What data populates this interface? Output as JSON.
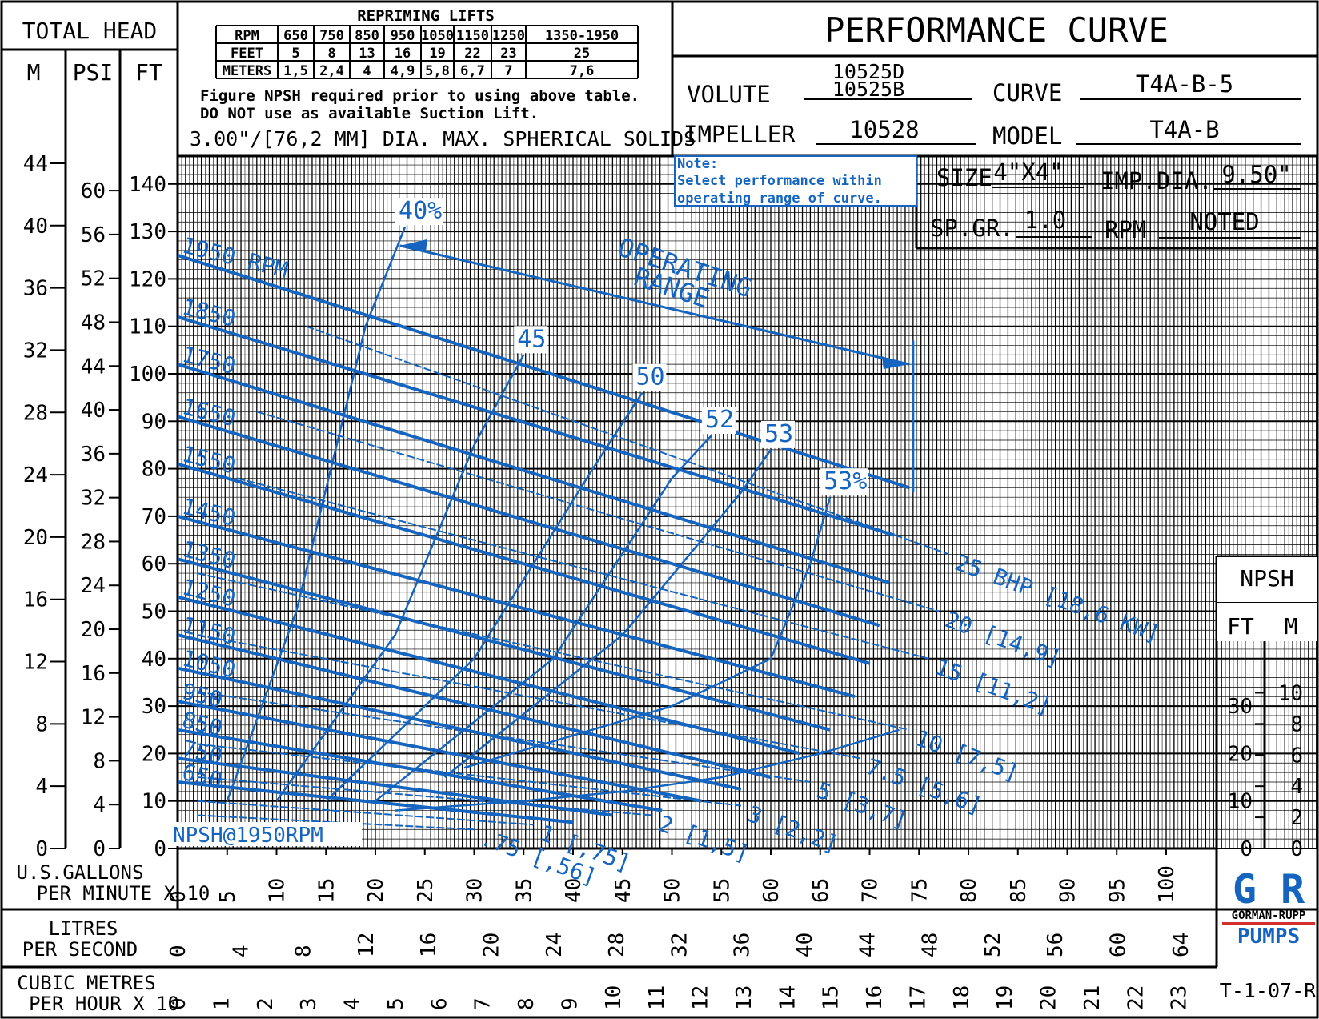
{
  "header": {
    "total_head": "TOTAL HEAD",
    "unit_m": "M",
    "unit_psi": "PSI",
    "unit_ft": "FT",
    "title": "PERFORMANCE CURVE"
  },
  "repriming": {
    "title": "REPRIMING LIFTS",
    "rows": [
      [
        "RPM",
        "650",
        "750",
        "850",
        "950",
        "1050",
        "1150",
        "1250",
        "1350-1950"
      ],
      [
        "FEET",
        "5",
        "8",
        "13",
        "16",
        "19",
        "22",
        "23",
        "25"
      ],
      [
        "METERS",
        "1,5",
        "2,4",
        "4",
        "4,9",
        "5,8",
        "6,7",
        "7",
        "7,6"
      ]
    ],
    "note1": "Figure NPSH required prior to using above table.",
    "note2": "DO NOT use as available Suction Lift.",
    "solids": "3.00\"/[76,2 MM] DIA. MAX. SPHERICAL SOLIDS"
  },
  "specs": {
    "volute_label": "VOLUTE",
    "volute_value_1": "10525D",
    "volute_value_2": "10525B",
    "curve_label": "CURVE",
    "curve_value": "T4A-B-5",
    "impeller_label": "IMPELLER",
    "impeller_value": "10528",
    "model_label": "MODEL",
    "model_value": "T4A-B",
    "size_label": "SIZE",
    "size_value": "4\"X4\"",
    "impdia_label": "IMP.DIA.",
    "impdia_value": "9.50\"",
    "spgr_label": "SP.GR.",
    "spgr_value": "1.0",
    "rpm_label": "RPM",
    "rpm_value": "NOTED"
  },
  "note": {
    "line1": "Note:",
    "line2": "Select performance within",
    "line3": "operating range of curve."
  },
  "npsh_box": {
    "title": "NPSH",
    "ft": "FT",
    "m": "M"
  },
  "axis": {
    "usgpm_1": "U.S.GALLONS",
    "usgpm_2": "PER MINUTE X 10",
    "lps_1": "LITRES",
    "lps_2": "PER SECOND",
    "cmh_1": "CUBIC METRES",
    "cmh_2": "PER HOUR X 10"
  },
  "logo": {
    "mark": "G R",
    "line1": "GORMAN-RUPP",
    "line2": "PUMPS"
  },
  "drawing_number": "T-1-07-R",
  "chart_data": {
    "type": "line",
    "x_unit": "U.S. gallons per minute x 10",
    "xlim": [
      0,
      105
    ],
    "ylim": [
      0,
      140
    ],
    "x_ticks": [
      "0",
      "5",
      "10",
      "15",
      "20",
      "25",
      "30",
      "35",
      "40",
      "45",
      "50",
      "55",
      "60",
      "65",
      "70",
      "75",
      "80",
      "85",
      "90",
      "95",
      "100"
    ],
    "lps_ticks": [
      "0",
      "4",
      "8",
      "12",
      "16",
      "20",
      "24",
      "28",
      "32",
      "36",
      "40",
      "44",
      "48",
      "52",
      "56",
      "60",
      "64"
    ],
    "cmh_ticks": [
      "0",
      "1",
      "2",
      "3",
      "4",
      "5",
      "6",
      "7",
      "8",
      "9",
      "10",
      "11",
      "12",
      "13",
      "14",
      "15",
      "16",
      "17",
      "18",
      "19",
      "20",
      "21",
      "22",
      "23"
    ],
    "ft_ticks": [
      "0",
      "10",
      "20",
      "30",
      "40",
      "50",
      "60",
      "70",
      "80",
      "90",
      "100",
      "110",
      "120",
      "130",
      "140"
    ],
    "psi_ticks": [
      "0",
      "4",
      "8",
      "12",
      "16",
      "20",
      "24",
      "28",
      "32",
      "36",
      "40",
      "44",
      "48",
      "52",
      "56",
      "60"
    ],
    "m_ticks": [
      "0",
      "4",
      "8",
      "12",
      "16",
      "20",
      "24",
      "28",
      "32",
      "36",
      "40",
      "44"
    ],
    "npsh_ft_ticks": [
      "0",
      "10",
      "20",
      "30"
    ],
    "npsh_m_ticks": [
      "0",
      "2",
      "4",
      "6",
      "8",
      "10"
    ],
    "head_curves": [
      {
        "label": "1950 RPM",
        "x": [
          0,
          74
        ],
        "y": [
          125,
          76
        ]
      },
      {
        "label": "1850",
        "x": [
          0,
          72.5
        ],
        "y": [
          112,
          66
        ]
      },
      {
        "label": "1750",
        "x": [
          0,
          72
        ],
        "y": [
          102,
          56
        ]
      },
      {
        "label": "1650",
        "x": [
          0,
          71
        ],
        "y": [
          91,
          47
        ]
      },
      {
        "label": "1550",
        "x": [
          0,
          70
        ],
        "y": [
          81,
          39
        ]
      },
      {
        "label": "1450",
        "x": [
          0,
          68.5
        ],
        "y": [
          70,
          32
        ]
      },
      {
        "label": "1350",
        "x": [
          0,
          66
        ],
        "y": [
          61,
          25
        ]
      },
      {
        "label": "1250",
        "x": [
          0,
          63
        ],
        "y": [
          53,
          20
        ]
      },
      {
        "label": "1150",
        "x": [
          0,
          60
        ],
        "y": [
          45,
          15
        ]
      },
      {
        "label": "1050",
        "x": [
          0,
          57
        ],
        "y": [
          38,
          12.5
        ]
      },
      {
        "label": "950",
        "x": [
          0,
          53
        ],
        "y": [
          31,
          10
        ]
      },
      {
        "label": "850",
        "x": [
          0,
          49
        ],
        "y": [
          25,
          8
        ]
      },
      {
        "label": "750",
        "x": [
          0,
          44
        ],
        "y": [
          19,
          7
        ]
      },
      {
        "label": "650",
        "x": [
          0,
          40
        ],
        "y": [
          14,
          5.5
        ]
      }
    ],
    "efficiency_curves": [
      {
        "label": "40%",
        "x": [
          5,
          12,
          19,
          23
        ],
        "y": [
          10,
          50,
          110,
          131
        ]
      },
      {
        "label": "45",
        "x": [
          10,
          22,
          30,
          35
        ],
        "y": [
          10,
          45,
          85,
          104
        ]
      },
      {
        "label": "50",
        "x": [
          15,
          30,
          42,
          47
        ],
        "y": [
          10,
          40,
          80,
          96
        ]
      },
      {
        "label": "52",
        "x": [
          20,
          38,
          50,
          54
        ],
        "y": [
          10,
          40,
          78,
          87
        ]
      },
      {
        "label": "53",
        "x": [
          27,
          45,
          57,
          60
        ],
        "y": [
          15,
          45,
          75,
          84
        ]
      },
      {
        "label": "53%",
        "x": [
          29,
          50,
          60,
          64,
          66
        ],
        "y": [
          17,
          30,
          40,
          60,
          74
        ]
      }
    ],
    "bhp_lines": [
      {
        "label": "25 BHP [18,6 KW]",
        "x": [
          13,
          78
        ],
        "y": [
          110,
          62
        ]
      },
      {
        "label": "20 [14,9]",
        "x": [
          8,
          77
        ],
        "y": [
          92,
          50
        ]
      },
      {
        "label": "15 [11,2]",
        "x": [
          6,
          76
        ],
        "y": [
          78,
          40
        ]
      },
      {
        "label": "10 [7,5]",
        "x": [
          2,
          74
        ],
        "y": [
          58,
          25
        ]
      },
      {
        "label": "7.5 [5,6]",
        "x": [
          2,
          69
        ],
        "y": [
          45,
          19
        ]
      },
      {
        "label": "5 [3,7]",
        "x": [
          2,
          64
        ],
        "y": [
          33,
          14
        ]
      },
      {
        "label": "3 [2,2]",
        "x": [
          2,
          57
        ],
        "y": [
          22,
          9
        ]
      },
      {
        "label": "2 [1,5]",
        "x": [
          2,
          48
        ],
        "y": [
          15,
          7
        ]
      },
      {
        "label": "1 [,75]",
        "x": [
          2,
          36
        ],
        "y": [
          10,
          5
        ]
      },
      {
        "label": ".75 [,56]",
        "x": [
          2,
          30
        ],
        "y": [
          7,
          4
        ]
      }
    ],
    "npsh_curve": {
      "label": "NPSH@1950RPM",
      "x": [
        22,
        35,
        45,
        55,
        65,
        73
      ],
      "y": [
        8,
        10,
        12,
        15,
        20,
        25
      ]
    },
    "operating_range_label_1": "OPERATING",
    "operating_range_label_2": "RANGE",
    "operating_range": {
      "x": [
        22.5,
        74
      ],
      "y": [
        127,
        102
      ]
    }
  }
}
